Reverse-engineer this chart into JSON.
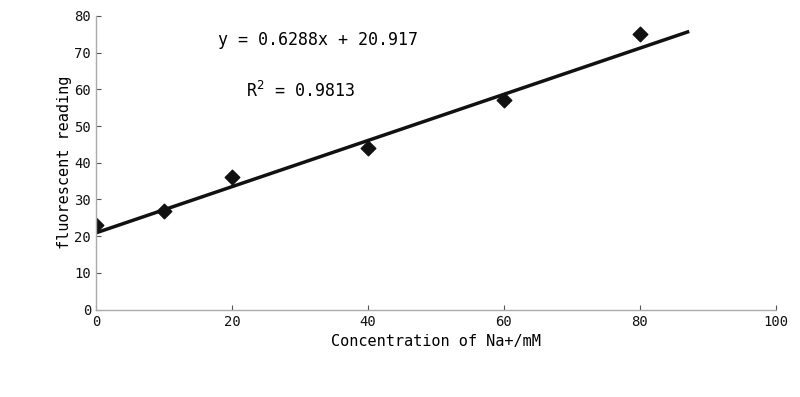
{
  "x_data": [
    0,
    10,
    20,
    40,
    60,
    80
  ],
  "y_data": [
    23,
    27,
    36,
    44,
    57,
    75
  ],
  "slope": 0.6288,
  "intercept": 20.917,
  "r_squared": 0.9813,
  "equation_text": "y = 0.6288x + 20.917",
  "r2_text": "R$^2$ = 0.9813",
  "xlabel": "Concentration of Na+/mM",
  "ylabel": "fluorescent reading",
  "xlim": [
    0,
    100
  ],
  "ylim": [
    0,
    80
  ],
  "xticks": [
    0,
    20,
    40,
    60,
    80,
    100
  ],
  "yticks": [
    0,
    10,
    20,
    30,
    40,
    50,
    60,
    70,
    80
  ],
  "line_x_start": -1,
  "line_x_end": 87,
  "marker_color": "#111111",
  "line_color": "#111111",
  "spine_color": "#aaaaaa",
  "bg_color": "#ffffff",
  "font_size_label": 11,
  "font_size_annot": 12,
  "font_size_tick": 10,
  "marker_size": 55,
  "line_width": 2.5
}
